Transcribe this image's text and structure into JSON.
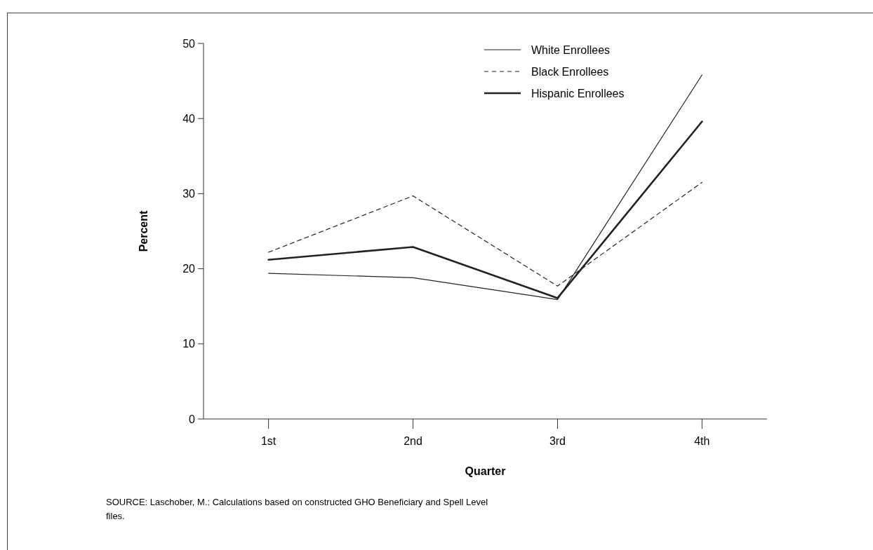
{
  "chart_data": {
    "type": "line",
    "xlabel": "Quarter",
    "ylabel": "Percent",
    "categories": [
      "1st",
      "2nd",
      "3rd",
      "4th"
    ],
    "series": [
      {
        "name": "White Enrollees",
        "color": "#222222",
        "line_style": "solid",
        "values": [
          19.4,
          18.8,
          15.9,
          45.8
        ]
      },
      {
        "name": "Black Enrollees",
        "color": "#222222",
        "line_style": "dashed",
        "values": [
          22.2,
          29.7,
          17.7,
          31.5
        ]
      },
      {
        "name": "Hispanic Enrollees",
        "color": "#222222",
        "line_style": "solid",
        "values": [
          21.2,
          22.9,
          16.1,
          39.6
        ]
      }
    ],
    "ylim": [
      0,
      50
    ],
    "yticks": [
      0,
      10,
      20,
      30,
      40,
      50
    ],
    "grid": false,
    "legend": "top right",
    "marker": "none",
    "annotations": [
      "SOURCE: Laschober, M.: Calculations based on constructed GHO Beneficiary and Spell Level files."
    ]
  }
}
